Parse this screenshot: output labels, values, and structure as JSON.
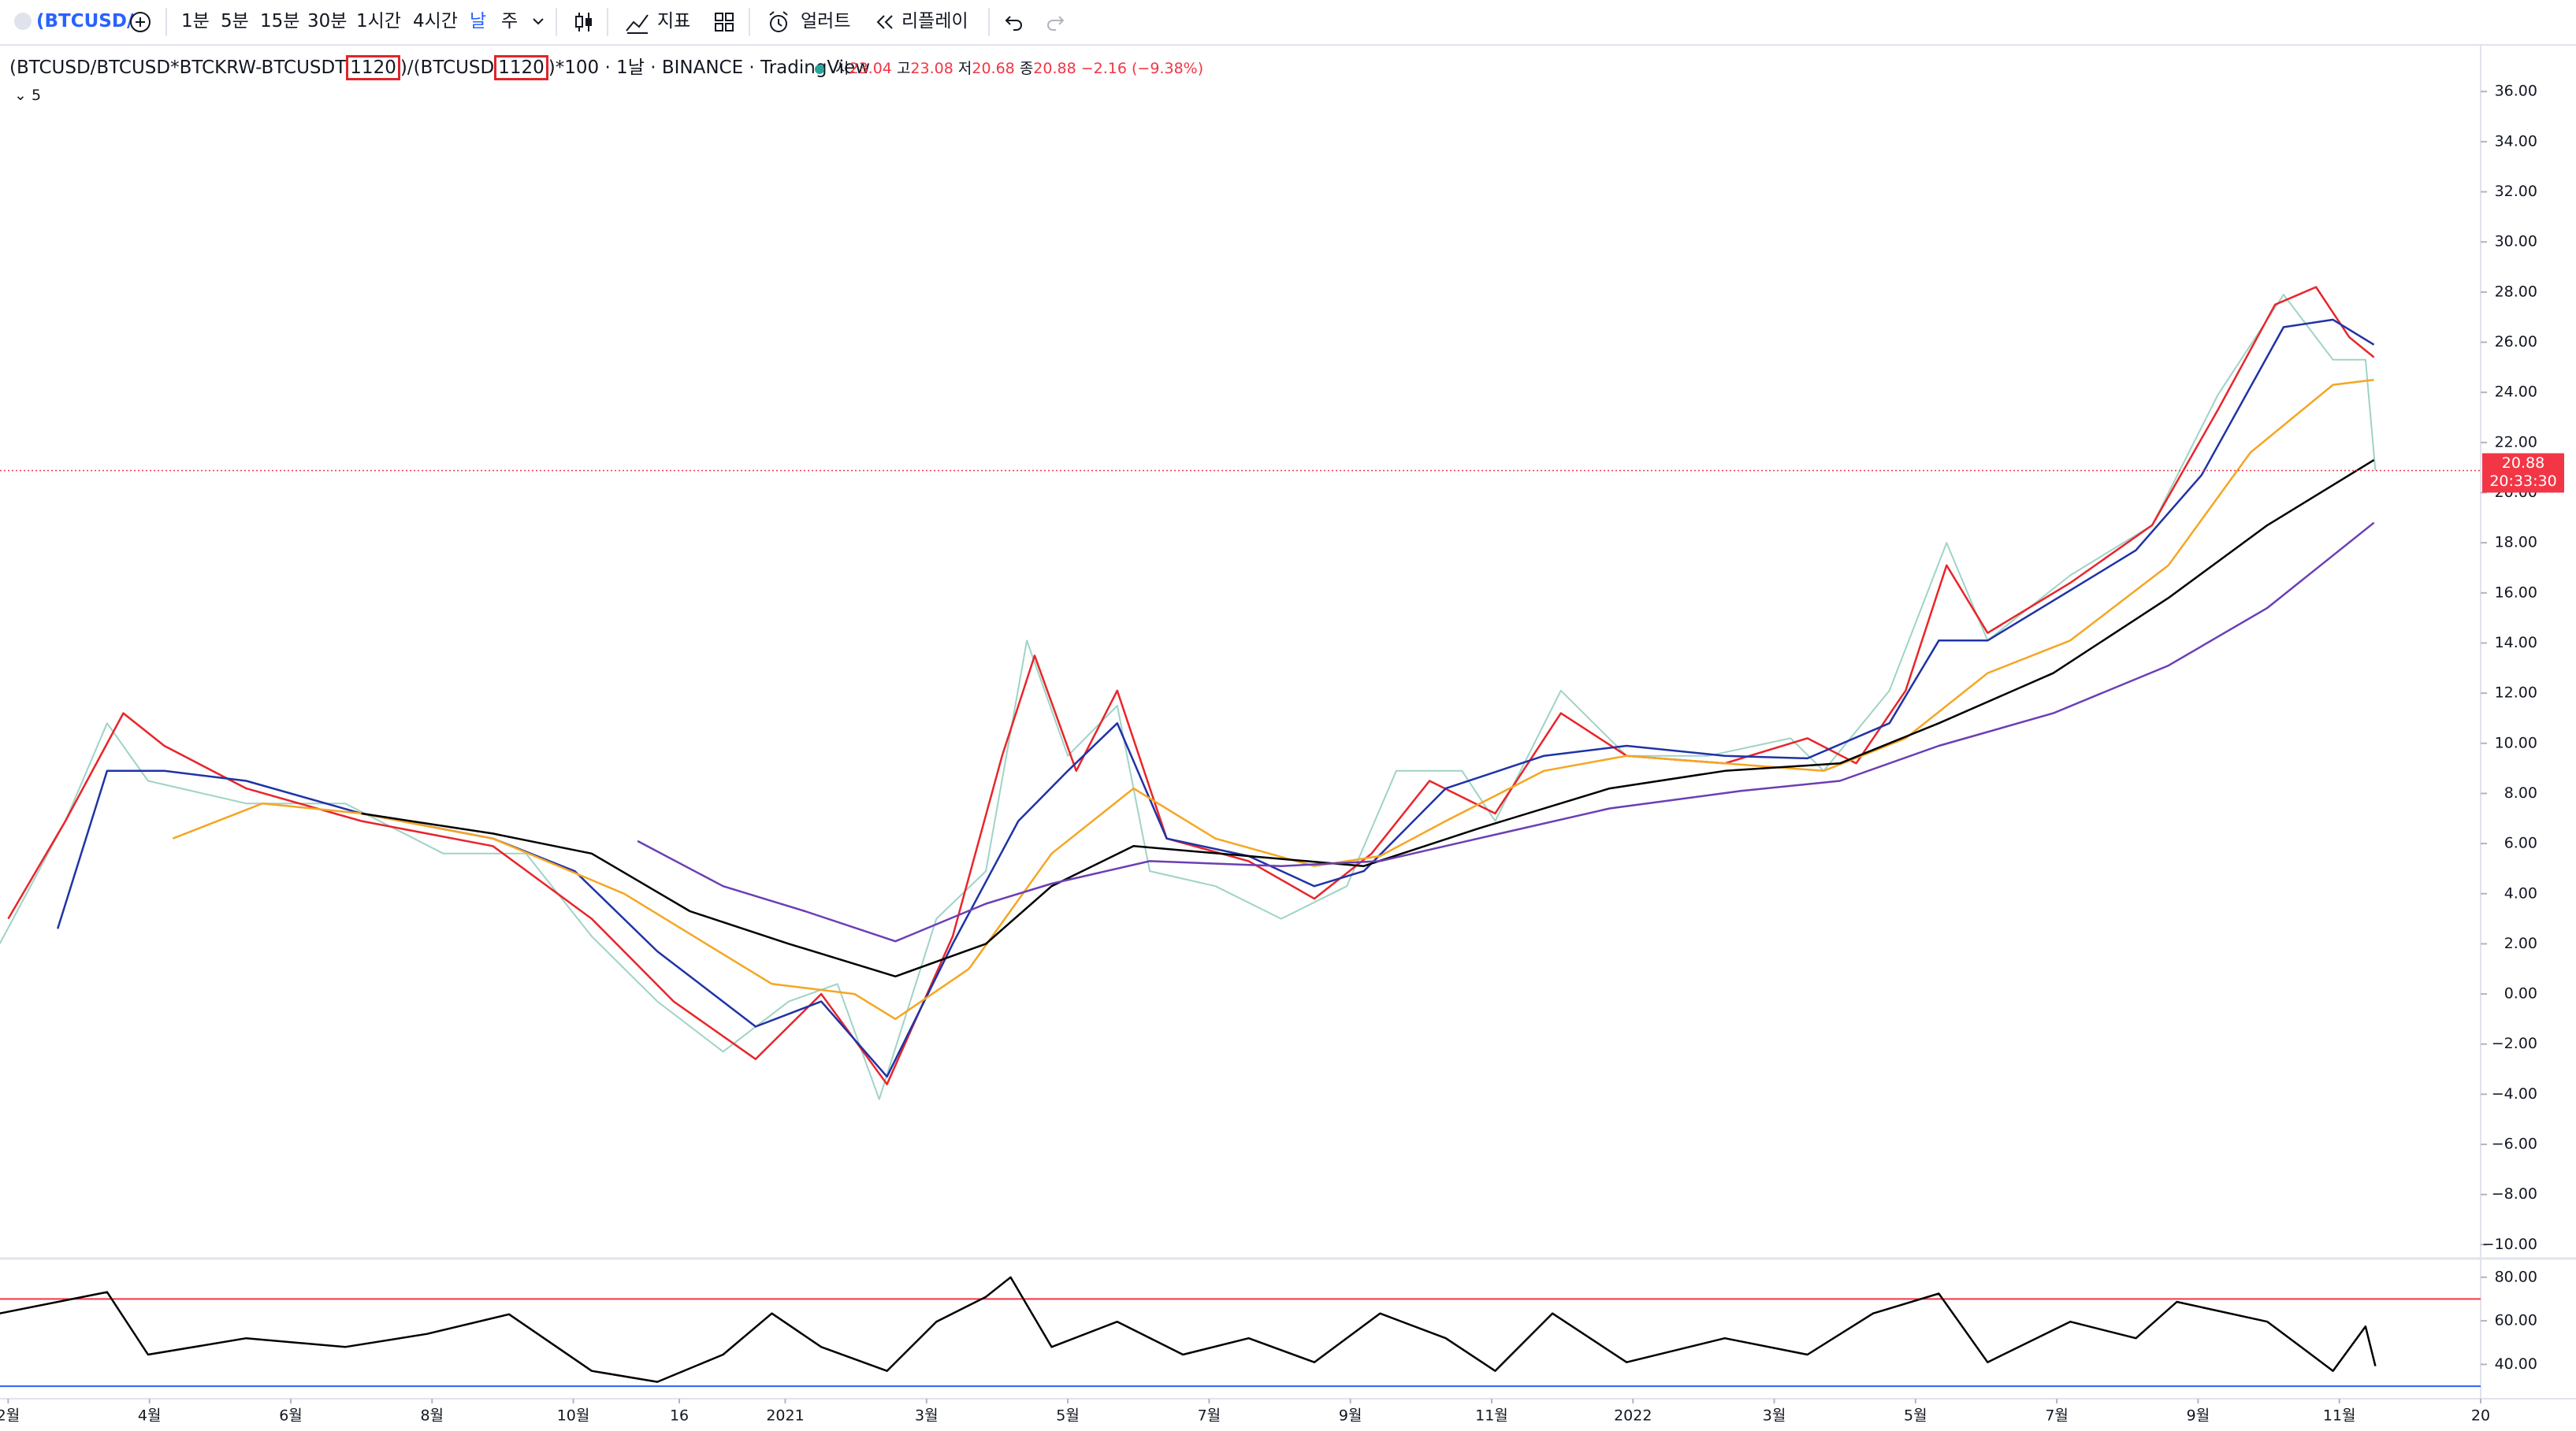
{
  "toolbar": {
    "symbol": "(BTCUSD/",
    "intervals": [
      "1분",
      "5분",
      "15분",
      "30분",
      "1시간",
      "4시간",
      "날",
      "주"
    ],
    "indicators": "지표",
    "alert": "얼러트",
    "replay": "리플레이"
  },
  "legend": {
    "parts": [
      "(BTCUSD/BTCUSD*BTCKRW-BTCUSDT",
      "1120",
      ")/(BTCUSD",
      "1120",
      ")*100 · 1날 · BINANCE · TradingView"
    ],
    "open_label": "시",
    "open": 23.04,
    "high_label": "고",
    "high": 23.08,
    "low_label": "저",
    "low": 20.68,
    "close_label": "종",
    "close": 20.88,
    "change": "−2.16 (−9.38%)",
    "indicator_count": 5
  },
  "chart_data": [
    {
      "type": "line",
      "xlim": [
        0.884,
        36
      ],
      "ylim": [
        -10.46,
        37.83
      ],
      "xticks": [
        {
          "value": 1,
          "label": "2월"
        },
        {
          "value": 3,
          "label": "4월"
        },
        {
          "value": 5,
          "label": "6월"
        },
        {
          "value": 7,
          "label": "8월"
        },
        {
          "value": 9,
          "label": "10월"
        },
        {
          "value": 10.5,
          "label": "16"
        },
        {
          "value": 12,
          "label": "2021"
        },
        {
          "value": 14,
          "label": "3월"
        },
        {
          "value": 16,
          "label": "5월"
        },
        {
          "value": 18,
          "label": "7월"
        },
        {
          "value": 20,
          "label": "9월"
        },
        {
          "value": 22,
          "label": "11월"
        },
        {
          "value": 24,
          "label": "2022"
        },
        {
          "value": 26,
          "label": "3월"
        },
        {
          "value": 28,
          "label": "5월"
        },
        {
          "value": 30,
          "label": "7월"
        },
        {
          "value": 32,
          "label": "9월"
        },
        {
          "value": 34,
          "label": "11월"
        },
        {
          "value": 36,
          "label": "20"
        }
      ],
      "yticks": [
        {
          "value": 36,
          "label": "36.00"
        },
        {
          "value": 34,
          "label": "34.00"
        },
        {
          "value": 32,
          "label": "32.00"
        },
        {
          "value": 30,
          "label": "30.00"
        },
        {
          "value": 28,
          "label": "28.00"
        },
        {
          "value": 26,
          "label": "26.00"
        },
        {
          "value": 24,
          "label": "24.00"
        },
        {
          "value": 22,
          "label": "22.00"
        },
        {
          "value": 20,
          "label": "20.00"
        },
        {
          "value": 18,
          "label": "18.00"
        },
        {
          "value": 16,
          "label": "16.00"
        },
        {
          "value": 14,
          "label": "14.00"
        },
        {
          "value": 12,
          "label": "12.00"
        },
        {
          "value": 10,
          "label": "10.00"
        },
        {
          "value": 8,
          "label": "8.00"
        },
        {
          "value": 6,
          "label": "6.00"
        },
        {
          "value": 4,
          "label": "4.00"
        },
        {
          "value": 2,
          "label": "2.00"
        },
        {
          "value": 0,
          "label": "0.00"
        },
        {
          "value": -2,
          "label": "−2.00"
        },
        {
          "value": -4,
          "label": "−4.00"
        },
        {
          "value": -6,
          "label": "−6.00"
        },
        {
          "value": -8,
          "label": "−8.00"
        },
        {
          "value": -10,
          "label": "−10.00"
        }
      ],
      "last_price": 20.88,
      "countdown": "20:33:30",
      "last_color": "#f23645",
      "series": [
        {
          "color": "#9fd3c7",
          "x": [
            0.88,
            1.81,
            2.4,
            2.98,
            4.37,
            5.77,
            7.16,
            8.33,
            9.26,
            10.19,
            11.12,
            12.05,
            12.74,
            13.33,
            14.14,
            14.84,
            15.42,
            16.0,
            16.7,
            17.16,
            18.09,
            19.02,
            19.95,
            20.65,
            21.58,
            22.05,
            22.98,
            23.91,
            25.07,
            26.23,
            26.7,
            27.63,
            28.44,
            29.02,
            30.19,
            31.35,
            32.28,
            33.21,
            33.91,
            34.37,
            34.51
          ],
          "values": [
            2.0,
            6.9,
            10.8,
            8.5,
            7.6,
            7.6,
            5.6,
            5.6,
            2.3,
            -0.3,
            -2.3,
            -0.3,
            0.4,
            -4.2,
            3.0,
            4.9,
            14.1,
            9.5,
            11.5,
            4.9,
            4.3,
            3.0,
            4.3,
            8.9,
            8.9,
            6.9,
            12.1,
            9.5,
            9.5,
            10.2,
            8.9,
            12.1,
            18.0,
            14.1,
            16.7,
            18.7,
            23.9,
            27.9,
            25.3,
            25.3,
            20.88
          ]
        },
        {
          "color": "#e8252b",
          "x": [
            1.0,
            1.81,
            2.63,
            3.21,
            4.37,
            6.0,
            7.86,
            9.26,
            10.42,
            11.58,
            12.51,
            13.44,
            14.37,
            15.07,
            15.53,
            16.12,
            16.7,
            17.4,
            18.56,
            19.49,
            20.3,
            21.12,
            22.05,
            22.98,
            23.91,
            25.3,
            26.47,
            27.16,
            27.86,
            28.44,
            29.02,
            30.19,
            31.35,
            32.28,
            33.09,
            33.67,
            34.14,
            34.49
          ],
          "values": [
            3.0,
            6.9,
            11.2,
            9.9,
            8.2,
            6.9,
            5.9,
            3.0,
            -0.3,
            -2.6,
            0.0,
            -3.6,
            2.3,
            9.5,
            13.5,
            8.9,
            12.1,
            6.2,
            5.3,
            3.8,
            5.6,
            8.5,
            7.2,
            11.2,
            9.5,
            9.2,
            10.2,
            9.2,
            12.1,
            17.1,
            14.4,
            16.4,
            18.7,
            23.3,
            27.5,
            28.2,
            26.2,
            25.4
          ]
        },
        {
          "color": "#1f33a6",
          "x": [
            1.7,
            2.4,
            3.21,
            4.37,
            6.0,
            7.86,
            9.02,
            10.19,
            11.58,
            12.51,
            13.44,
            14.37,
            15.3,
            16.0,
            16.7,
            17.4,
            18.56,
            19.49,
            20.19,
            21.35,
            22.74,
            23.91,
            25.3,
            26.47,
            27.63,
            28.33,
            29.02,
            30.19,
            31.12,
            32.05,
            33.21,
            33.91,
            34.49
          ],
          "values": [
            2.6,
            8.9,
            8.9,
            8.5,
            7.2,
            6.2,
            4.9,
            1.7,
            -1.3,
            -0.3,
            -3.3,
            2.0,
            6.9,
            8.9,
            10.8,
            6.2,
            5.5,
            4.3,
            4.9,
            8.2,
            9.5,
            9.9,
            9.5,
            9.4,
            10.8,
            14.1,
            14.1,
            16.1,
            17.7,
            20.7,
            26.6,
            26.9,
            25.9
          ]
        },
        {
          "color": "#f5a623",
          "x": [
            3.33,
            4.6,
            6.0,
            7.86,
            9.72,
            10.88,
            11.81,
            12.98,
            13.56,
            14.6,
            15.77,
            16.93,
            18.09,
            19.49,
            20.42,
            21.35,
            22.74,
            23.91,
            25.3,
            26.7,
            27.86,
            29.02,
            30.19,
            31.58,
            32.74,
            33.91,
            34.49
          ],
          "values": [
            6.2,
            7.6,
            7.2,
            6.2,
            4.0,
            2.0,
            0.4,
            0.0,
            -1.0,
            1.0,
            5.6,
            8.2,
            6.2,
            5.1,
            5.5,
            6.9,
            8.9,
            9.5,
            9.2,
            8.9,
            10.2,
            12.8,
            14.1,
            17.1,
            21.6,
            24.3,
            24.5
          ]
        },
        {
          "color": "#000000",
          "x": [
            6.0,
            7.86,
            9.26,
            10.65,
            12.05,
            13.56,
            14.84,
            15.77,
            16.93,
            18.56,
            20.19,
            21.81,
            23.67,
            25.3,
            26.93,
            28.33,
            29.95,
            31.58,
            32.98,
            34.49
          ],
          "values": [
            7.2,
            6.4,
            5.6,
            3.3,
            2.0,
            0.7,
            2.0,
            4.3,
            5.9,
            5.5,
            5.1,
            6.6,
            8.2,
            8.9,
            9.2,
            10.8,
            12.8,
            15.8,
            18.7,
            21.3
          ]
        },
        {
          "color": "#6a3fb5",
          "x": [
            9.91,
            11.12,
            12.28,
            13.56,
            14.84,
            15.77,
            17.16,
            19.02,
            20.42,
            21.81,
            23.67,
            25.53,
            26.93,
            28.33,
            29.95,
            31.58,
            32.98,
            34.49
          ],
          "values": [
            6.1,
            4.3,
            3.3,
            2.1,
            3.6,
            4.4,
            5.3,
            5.1,
            5.3,
            6.2,
            7.4,
            8.1,
            8.5,
            9.9,
            11.2,
            13.1,
            15.4,
            18.8
          ]
        }
      ]
    },
    {
      "type": "line",
      "xlim": [
        0.884,
        36
      ],
      "ylim": [
        25.7,
        87.5
      ],
      "yticks": [
        {
          "value": 80,
          "label": "80.00"
        },
        {
          "value": 60,
          "label": "60.00"
        },
        {
          "value": 40,
          "label": "40.00"
        }
      ],
      "levels": [
        {
          "value": 70,
          "color": "#f23645"
        },
        {
          "value": 30,
          "color": "#2962ff"
        }
      ],
      "series": [
        {
          "color": "#000000",
          "x": [
            0.88,
            2.4,
            2.98,
            4.37,
            5.77,
            6.93,
            8.09,
            9.26,
            10.19,
            11.12,
            11.81,
            12.51,
            13.44,
            14.14,
            14.84,
            15.19,
            15.77,
            16.7,
            17.63,
            18.56,
            19.49,
            20.42,
            21.35,
            22.05,
            22.86,
            23.91,
            25.3,
            26.47,
            27.4,
            28.33,
            29.02,
            30.19,
            31.12,
            31.7,
            32.98,
            33.91,
            34.37,
            34.51
          ],
          "values": [
            63.4,
            73.2,
            44.5,
            52,
            48,
            54,
            63,
            37,
            32,
            44.5,
            63.4,
            48,
            37,
            59.6,
            71,
            80,
            48,
            59.6,
            44.5,
            52,
            41,
            63.4,
            52,
            37,
            63.4,
            41,
            52,
            44.5,
            63.4,
            72.5,
            41,
            59.6,
            52,
            68.7,
            59.6,
            37,
            57.4,
            39.2
          ]
        }
      ]
    }
  ]
}
